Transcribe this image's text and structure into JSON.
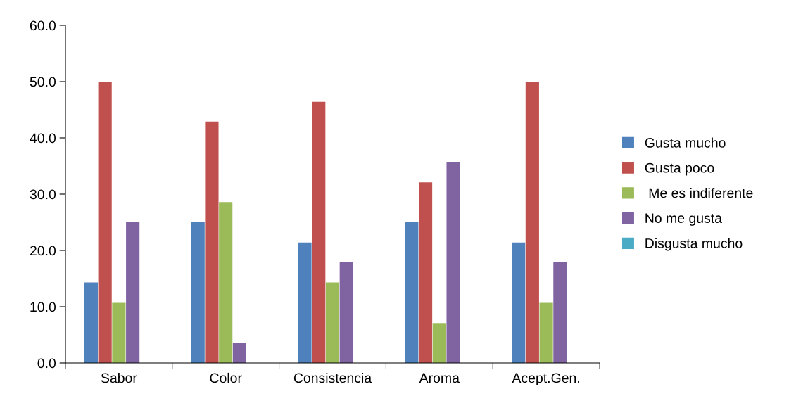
{
  "chart_data": {
    "type": "bar",
    "categories": [
      "Sabor",
      "Color",
      "Consistencia",
      "Aroma",
      "Acept.Gen."
    ],
    "series": [
      {
        "name": "Gusta mucho",
        "color": "#4f81bd",
        "values": [
          14.3,
          25.0,
          21.4,
          25.0,
          21.4
        ]
      },
      {
        "name": "Gusta poco",
        "color": "#c0504d",
        "values": [
          50.0,
          42.9,
          46.4,
          32.1,
          50.0
        ]
      },
      {
        "name": " Me es indiferente",
        "color": "#9bbb59",
        "values": [
          10.7,
          28.6,
          14.3,
          7.1,
          10.7
        ]
      },
      {
        "name": "No me gusta",
        "color": "#8064a2",
        "values": [
          25.0,
          3.6,
          17.9,
          35.7,
          17.9
        ]
      },
      {
        "name": "Disgusta mucho",
        "color": "#4bacc6",
        "values": [
          0,
          0,
          0,
          0,
          0
        ]
      }
    ],
    "ylim": [
      0,
      60
    ],
    "yticks": [
      {
        "value": 0,
        "label": "0.0"
      },
      {
        "value": 10,
        "label": "10.0"
      },
      {
        "value": 20,
        "label": "20.0"
      },
      {
        "value": 30,
        "label": "30.0"
      },
      {
        "value": 40,
        "label": "40.0"
      },
      {
        "value": 50,
        "label": "50.0"
      },
      {
        "value": 60,
        "label": "60.0"
      }
    ],
    "grid": false,
    "legend": "right"
  }
}
